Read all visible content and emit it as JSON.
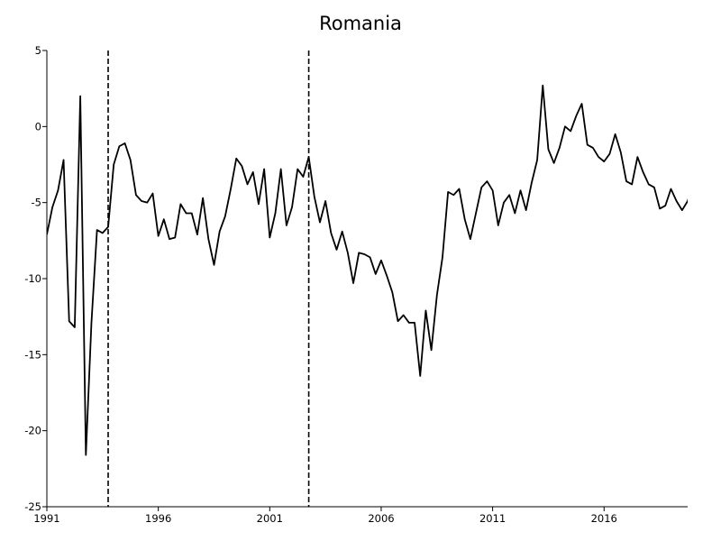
{
  "chart_data": {
    "type": "line",
    "title": "Romania",
    "xlabel": "",
    "ylabel": "",
    "xlim": [
      1991.0,
      2019.75
    ],
    "ylim": [
      -25,
      5
    ],
    "x_ticks": [
      {
        "value": 1991,
        "label": "1991"
      },
      {
        "value": 1996,
        "label": "1996"
      },
      {
        "value": 2001,
        "label": "2001"
      },
      {
        "value": 2006,
        "label": "2006"
      },
      {
        "value": 2011,
        "label": "2011"
      },
      {
        "value": 2016,
        "label": "2016"
      }
    ],
    "y_ticks": [
      {
        "value": 5,
        "label": "5"
      },
      {
        "value": 0,
        "label": "0"
      },
      {
        "value": -5,
        "label": "-5"
      },
      {
        "value": -10,
        "label": "-10"
      },
      {
        "value": -15,
        "label": "-15"
      },
      {
        "value": -20,
        "label": "-20"
      },
      {
        "value": -25,
        "label": "-25"
      }
    ],
    "vertical_reference_lines": [
      1993.75,
      2002.75
    ],
    "grid": false,
    "legend": "none",
    "series": [
      {
        "color": "#000000",
        "points": [
          [
            1991.0,
            -7.1
          ],
          [
            1991.25,
            -5.3
          ],
          [
            1991.5,
            -4.2
          ],
          [
            1991.75,
            -2.2
          ],
          [
            1992.0,
            -12.8
          ],
          [
            1992.25,
            -13.2
          ],
          [
            1992.5,
            2.0
          ],
          [
            1992.75,
            -21.6
          ],
          [
            1993.0,
            -12.9
          ],
          [
            1993.25,
            -6.8
          ],
          [
            1993.5,
            -7.0
          ],
          [
            1993.75,
            -6.6
          ],
          [
            1994.0,
            -2.5
          ],
          [
            1994.25,
            -1.3
          ],
          [
            1994.5,
            -1.1
          ],
          [
            1994.75,
            -2.2
          ],
          [
            1995.0,
            -4.5
          ],
          [
            1995.25,
            -4.9
          ],
          [
            1995.5,
            -5.0
          ],
          [
            1995.75,
            -4.4
          ],
          [
            1996.0,
            -7.2
          ],
          [
            1996.25,
            -6.1
          ],
          [
            1996.5,
            -7.4
          ],
          [
            1996.75,
            -7.3
          ],
          [
            1997.0,
            -5.1
          ],
          [
            1997.25,
            -5.7
          ],
          [
            1997.5,
            -5.7
          ],
          [
            1997.75,
            -7.1
          ],
          [
            1998.0,
            -4.7
          ],
          [
            1998.25,
            -7.4
          ],
          [
            1998.5,
            -9.1
          ],
          [
            1998.75,
            -6.9
          ],
          [
            1999.0,
            -5.9
          ],
          [
            1999.25,
            -4.1
          ],
          [
            1999.5,
            -2.1
          ],
          [
            1999.75,
            -2.6
          ],
          [
            2000.0,
            -3.8
          ],
          [
            2000.25,
            -3.0
          ],
          [
            2000.5,
            -5.1
          ],
          [
            2000.75,
            -2.8
          ],
          [
            2001.0,
            -7.3
          ],
          [
            2001.25,
            -5.7
          ],
          [
            2001.5,
            -2.8
          ],
          [
            2001.75,
            -6.5
          ],
          [
            2002.0,
            -5.3
          ],
          [
            2002.25,
            -2.8
          ],
          [
            2002.5,
            -3.3
          ],
          [
            2002.75,
            -2.0
          ],
          [
            2003.0,
            -4.6
          ],
          [
            2003.25,
            -6.3
          ],
          [
            2003.5,
            -4.9
          ],
          [
            2003.75,
            -7.0
          ],
          [
            2004.0,
            -8.1
          ],
          [
            2004.25,
            -6.9
          ],
          [
            2004.5,
            -8.3
          ],
          [
            2004.75,
            -10.3
          ],
          [
            2005.0,
            -8.3
          ],
          [
            2005.25,
            -8.4
          ],
          [
            2005.5,
            -8.6
          ],
          [
            2005.75,
            -9.7
          ],
          [
            2006.0,
            -8.8
          ],
          [
            2006.25,
            -9.8
          ],
          [
            2006.5,
            -10.9
          ],
          [
            2006.75,
            -12.8
          ],
          [
            2007.0,
            -12.4
          ],
          [
            2007.25,
            -12.9
          ],
          [
            2007.5,
            -12.9
          ],
          [
            2007.75,
            -16.4
          ],
          [
            2008.0,
            -12.1
          ],
          [
            2008.25,
            -14.7
          ],
          [
            2008.5,
            -11.1
          ],
          [
            2008.75,
            -8.6
          ],
          [
            2009.0,
            -4.3
          ],
          [
            2009.25,
            -4.5
          ],
          [
            2009.5,
            -4.1
          ],
          [
            2009.75,
            -6.1
          ],
          [
            2010.0,
            -7.4
          ],
          [
            2010.25,
            -5.7
          ],
          [
            2010.5,
            -4.0
          ],
          [
            2010.75,
            -3.6
          ],
          [
            2011.0,
            -4.2
          ],
          [
            2011.25,
            -6.5
          ],
          [
            2011.5,
            -5.0
          ],
          [
            2011.75,
            -4.5
          ],
          [
            2012.0,
            -5.7
          ],
          [
            2012.25,
            -4.2
          ],
          [
            2012.5,
            -5.5
          ],
          [
            2012.75,
            -3.7
          ],
          [
            2013.0,
            -2.2
          ],
          [
            2013.25,
            2.7
          ],
          [
            2013.5,
            -1.5
          ],
          [
            2013.75,
            -2.4
          ],
          [
            2014.0,
            -1.4
          ],
          [
            2014.25,
            0.0
          ],
          [
            2014.5,
            -0.3
          ],
          [
            2014.75,
            0.7
          ],
          [
            2015.0,
            1.5
          ],
          [
            2015.25,
            -1.2
          ],
          [
            2015.5,
            -1.4
          ],
          [
            2015.75,
            -2.0
          ],
          [
            2016.0,
            -2.3
          ],
          [
            2016.25,
            -1.8
          ],
          [
            2016.5,
            -0.5
          ],
          [
            2016.75,
            -1.7
          ],
          [
            2017.0,
            -3.6
          ],
          [
            2017.25,
            -3.8
          ],
          [
            2017.5,
            -2.0
          ],
          [
            2017.75,
            -3.0
          ],
          [
            2018.0,
            -3.8
          ],
          [
            2018.25,
            -4.0
          ],
          [
            2018.5,
            -5.4
          ],
          [
            2018.75,
            -5.2
          ],
          [
            2019.0,
            -4.1
          ],
          [
            2019.25,
            -4.9
          ],
          [
            2019.5,
            -5.5
          ],
          [
            2019.75,
            -4.9
          ],
          [
            2020.0,
            -3.7
          ]
        ]
      }
    ]
  }
}
